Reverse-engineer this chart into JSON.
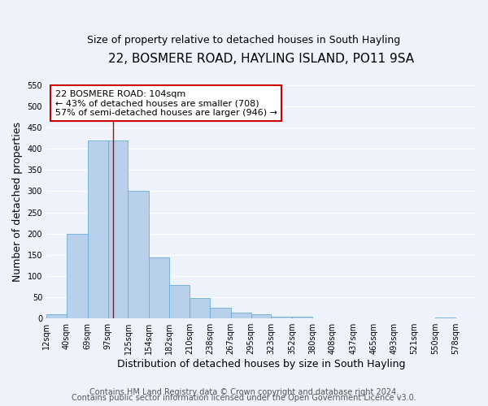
{
  "title": "22, BOSMERE ROAD, HAYLING ISLAND, PO11 9SA",
  "subtitle": "Size of property relative to detached houses in South Hayling",
  "xlabel": "Distribution of detached houses by size in South Hayling",
  "ylabel": "Number of detached properties",
  "bin_labels": [
    "12sqm",
    "40sqm",
    "69sqm",
    "97sqm",
    "125sqm",
    "154sqm",
    "182sqm",
    "210sqm",
    "238sqm",
    "267sqm",
    "295sqm",
    "323sqm",
    "352sqm",
    "380sqm",
    "408sqm",
    "437sqm",
    "465sqm",
    "493sqm",
    "521sqm",
    "550sqm",
    "578sqm"
  ],
  "bar_values": [
    10,
    200,
    420,
    420,
    300,
    143,
    78,
    48,
    25,
    13,
    10,
    5,
    5,
    0,
    0,
    0,
    0,
    0,
    0,
    3,
    0
  ],
  "bar_color": "#b8d0eb",
  "bar_edgecolor": "#6baed6",
  "vline_x": 104,
  "bin_edges": [
    12,
    40,
    69,
    97,
    125,
    154,
    182,
    210,
    238,
    267,
    295,
    323,
    352,
    380,
    408,
    437,
    465,
    493,
    521,
    550,
    578,
    606
  ],
  "ylim": [
    0,
    550
  ],
  "yticks": [
    0,
    50,
    100,
    150,
    200,
    250,
    300,
    350,
    400,
    450,
    500,
    550
  ],
  "annotation_line1": "22 BOSMERE ROAD: 104sqm",
  "annotation_line2": "← 43% of detached houses are smaller (708)",
  "annotation_line3": "57% of semi-detached houses are larger (946) →",
  "annotation_box_color": "#ffffff",
  "annotation_box_edgecolor": "#cc0000",
  "footer1": "Contains HM Land Registry data © Crown copyright and database right 2024.",
  "footer2": "Contains public sector information licensed under the Open Government Licence v3.0.",
  "background_color": "#edf2fb",
  "grid_color": "#ffffff",
  "title_fontsize": 11,
  "subtitle_fontsize": 9,
  "axis_label_fontsize": 9,
  "tick_fontsize": 7,
  "annotation_fontsize": 8,
  "footer_fontsize": 7
}
